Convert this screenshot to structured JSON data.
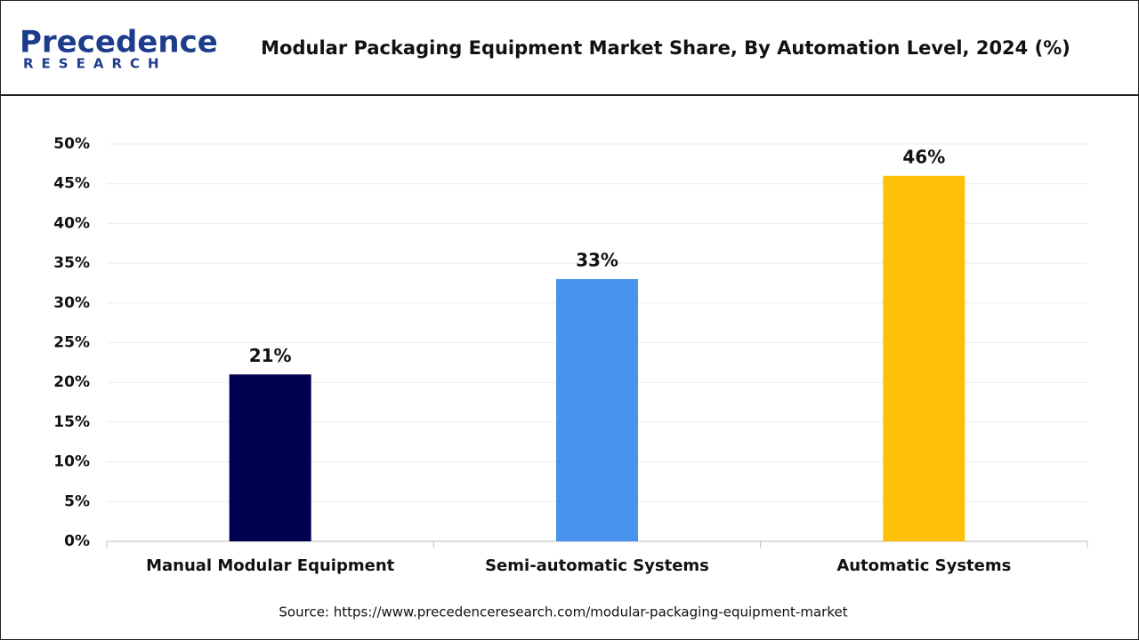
{
  "logo": {
    "name": "Precedence",
    "tagline": "RESEARCH"
  },
  "chart_data": {
    "type": "bar",
    "title": "Modular Packaging Equipment Market Share, By Automation Level, 2024 (%)",
    "categories": [
      "Manual Modular Equipment",
      "Semi-automatic Systems",
      "Automatic Systems"
    ],
    "values": [
      21,
      33,
      46
    ],
    "value_labels": [
      "21%",
      "33%",
      "46%"
    ],
    "colors": [
      "#000050",
      "#4793ee",
      "#ffc00a"
    ],
    "ylim": [
      0,
      50
    ],
    "yticks": [
      {
        "value": 0,
        "label": "0%"
      },
      {
        "value": 5,
        "label": "5%"
      },
      {
        "value": 10,
        "label": "10%"
      },
      {
        "value": 15,
        "label": "15%"
      },
      {
        "value": 20,
        "label": "20%"
      },
      {
        "value": 25,
        "label": "25%"
      },
      {
        "value": 30,
        "label": "30%"
      },
      {
        "value": 35,
        "label": "35%"
      },
      {
        "value": 40,
        "label": "40%"
      },
      {
        "value": 45,
        "label": "45%"
      },
      {
        "value": 50,
        "label": "50%"
      }
    ],
    "grid": true,
    "source": "Source: https://www.precedenceresearch.com/modular-packaging-equipment-market"
  }
}
